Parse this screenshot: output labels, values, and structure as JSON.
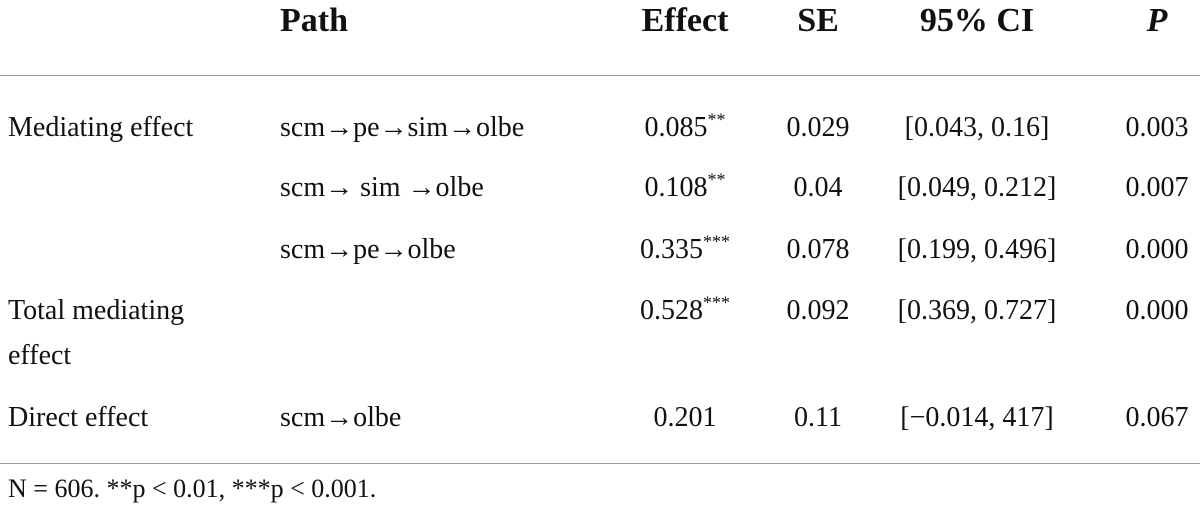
{
  "table": {
    "headers": {
      "path": "Path",
      "effect": "Effect",
      "se": "SE",
      "ci": "95% CI",
      "p": "P"
    },
    "rows": [
      {
        "label": "Mediating effect",
        "path": "scm→pe→sim→olbe",
        "effect": "0.085",
        "stars": "**",
        "se": "0.029",
        "ci": "[0.043, 0.16]",
        "p": "0.003"
      },
      {
        "label": "",
        "path": "scm→ sim →olbe",
        "effect": "0.108",
        "stars": "**",
        "se": "0.04",
        "ci": "[0.049, 0.212]",
        "p": "0.007"
      },
      {
        "label": "",
        "path": "scm→pe→olbe",
        "effect": "0.335",
        "stars": "***",
        "se": "0.078",
        "ci": "[0.199, 0.496]",
        "p": "0.000"
      },
      {
        "label_line1": "Total mediating",
        "label_line2": "effect",
        "path": "",
        "effect": "0.528",
        "stars": "***",
        "se": "0.092",
        "ci": "[0.369, 0.727]",
        "p": "0.000"
      },
      {
        "label": "Direct effect",
        "path": "scm→olbe",
        "effect": "0.201",
        "stars": "",
        "se": "0.11",
        "ci": "[−0.014, 417]",
        "p": "0.067"
      }
    ],
    "footnote": "N = 606. **p < 0.01, ***p < 0.001."
  }
}
